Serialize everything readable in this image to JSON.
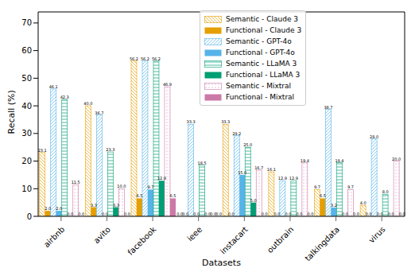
{
  "chart_data": {
    "type": "bar",
    "x_label": "Datasets",
    "y_label": "Recall (%)",
    "categories": [
      "airbnb",
      "avito",
      "facebook",
      "ieee",
      "instacart",
      "outbrain",
      "talkingdata",
      "virus"
    ],
    "ylim": [
      0,
      74
    ],
    "yticks": [
      0,
      10,
      20,
      30,
      40,
      50,
      60,
      70
    ],
    "grid": false,
    "data_labels": true,
    "legend": "top",
    "series": [
      {
        "name": "Semantic - Claude 3",
        "color": "#E69F00",
        "values": [
          23.1,
          40.0,
          56.2,
          0.0,
          33.3,
          16.1,
          9.7,
          4.0
        ],
        "value_labels": [
          "23.1",
          "40.0",
          "56.2",
          "0.0",
          "33.3",
          "16.1",
          "9.7",
          "4.0"
        ]
      },
      {
        "name": "Functional - Claude 3",
        "color": "#E69F00",
        "values": [
          2.0,
          3.3,
          6.5,
          0.0,
          0.0,
          0.0,
          6.5,
          0.0
        ],
        "value_labels": [
          "2.0",
          "3.3",
          "6.5",
          "0.0",
          "0.0",
          "0.0",
          "6.5",
          "0.0"
        ]
      },
      {
        "name": "Semantic - GPT-4o",
        "color": "#56B4E9",
        "values": [
          46.1,
          36.7,
          56.2,
          33.3,
          29.2,
          12.9,
          38.7,
          28.0
        ],
        "value_labels": [
          "46.1",
          "36.7",
          "56.2",
          "33.3",
          "29.2",
          "12.9",
          "38.7",
          "28.0"
        ]
      },
      {
        "name": "Functional - GPT-4o",
        "color": "#56B4E9",
        "values": [
          2.0,
          0.0,
          9.7,
          0.0,
          15.0,
          0.0,
          3.2,
          0.0
        ],
        "value_labels": [
          "2.0",
          "0.0",
          "9.7",
          "0.0",
          "15.0",
          "0.0",
          "3.2",
          "0.0"
        ]
      },
      {
        "name": "Semantic - LLaMA 3",
        "color": "#009E73",
        "values": [
          42.3,
          23.3,
          56.2,
          18.5,
          25.0,
          12.9,
          19.4,
          8.0
        ],
        "value_labels": [
          "42.3",
          "23.3",
          "56.2",
          "18.5",
          "25.0",
          "12.9",
          "19.4",
          "8.0"
        ]
      },
      {
        "name": "Functional - LLaMA 3",
        "color": "#009E73",
        "values": [
          0.0,
          3.3,
          12.9,
          0.0,
          5.0,
          0.0,
          0.0,
          0.0
        ],
        "value_labels": [
          "0.0",
          "3.3",
          "12.9",
          "0.0",
          "5.0",
          "0.0",
          "0.0",
          "0.0"
        ]
      },
      {
        "name": "Semantic - Mixtral",
        "color": "#CC79A7",
        "values": [
          11.5,
          10.0,
          46.9,
          0.0,
          16.7,
          19.4,
          9.7,
          20.0
        ],
        "value_labels": [
          "11.5",
          "10.0",
          "46.9",
          "0.0",
          "16.7",
          "19.4",
          "9.7",
          "20.0"
        ]
      },
      {
        "name": "Functional - Mixtral",
        "color": "#CC79A7",
        "values": [
          0.0,
          0.0,
          6.5,
          0.0,
          0.0,
          0.0,
          0.0,
          0.0
        ],
        "value_labels": [
          "0.0",
          "0.0",
          "6.5",
          "0.0",
          "0.0",
          "0.0",
          "0.0",
          "0.0"
        ]
      }
    ]
  }
}
